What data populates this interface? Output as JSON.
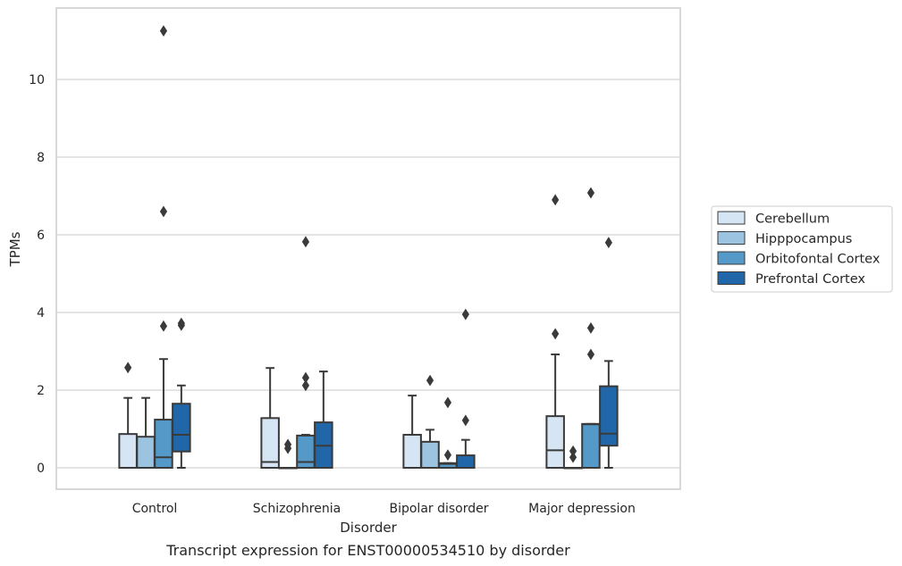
{
  "chart_data": {
    "type": "box",
    "caption": "Transcript expression for ENST00000534510 by disorder",
    "xlabel": "Disorder",
    "ylabel": "TPMs",
    "ylim": [
      -0.55,
      11.8
    ],
    "yticks": [
      0,
      2,
      4,
      6,
      8,
      10
    ],
    "grid": true,
    "legend_position": "right",
    "categories": [
      "Control",
      "Schizophrenia",
      "Bipolar disorder",
      "Major depression"
    ],
    "series": [
      {
        "name": "Cerebellum",
        "color": "#d6e5f4",
        "boxes": [
          {
            "min": 0,
            "q1": 0,
            "median": 0,
            "q3": 0.87,
            "max": 1.8,
            "outliers": [
              2.58
            ]
          },
          {
            "min": 0,
            "q1": 0,
            "median": 0.15,
            "q3": 1.28,
            "max": 2.57,
            "outliers": []
          },
          {
            "min": 0,
            "q1": 0,
            "median": 0,
            "q3": 0.85,
            "max": 1.86,
            "outliers": []
          },
          {
            "min": 0,
            "q1": 0,
            "median": 0.45,
            "q3": 1.33,
            "max": 2.92,
            "outliers": [
              3.45,
              6.9
            ]
          }
        ]
      },
      {
        "name": "Hipppocampus",
        "color": "#9cc4e0",
        "boxes": [
          {
            "min": 0,
            "q1": 0,
            "median": 0,
            "q3": 0.8,
            "max": 1.8,
            "outliers": []
          },
          {
            "min": 0,
            "q1": 0,
            "median": 0,
            "q3": 0,
            "max": 0,
            "outliers": [
              0.5,
              0.6
            ]
          },
          {
            "min": 0,
            "q1": 0,
            "median": 0,
            "q3": 0.67,
            "max": 0.98,
            "outliers": [
              2.25
            ]
          },
          {
            "min": 0,
            "q1": 0,
            "median": 0,
            "q3": 0,
            "max": 0,
            "outliers": [
              0.27,
              0.43
            ]
          }
        ]
      },
      {
        "name": "Orbitofontal Cortex",
        "color": "#5499c7",
        "boxes": [
          {
            "min": 0,
            "q1": 0,
            "median": 0.27,
            "q3": 1.24,
            "max": 2.8,
            "outliers": [
              3.65,
              6.6,
              11.25
            ]
          },
          {
            "min": 0,
            "q1": 0,
            "median": 0.15,
            "q3": 0.83,
            "max": 0.85,
            "outliers": [
              2.12,
              2.32,
              5.82
            ]
          },
          {
            "min": 0,
            "q1": 0,
            "median": 0.1,
            "q3": 0.12,
            "max": 0.12,
            "outliers": [
              0.33,
              1.68
            ]
          },
          {
            "min": 0,
            "q1": 0,
            "median": 1.12,
            "q3": 1.13,
            "max": 1.13,
            "outliers": [
              2.92,
              3.6,
              7.08
            ]
          }
        ]
      },
      {
        "name": "Prefrontal Cortex",
        "color": "#2166a8",
        "boxes": [
          {
            "min": 0,
            "q1": 0.42,
            "median": 0.85,
            "q3": 1.65,
            "max": 2.12,
            "outliers": [
              3.67,
              3.72
            ]
          },
          {
            "min": 0,
            "q1": 0,
            "median": 0.57,
            "q3": 1.17,
            "max": 2.48,
            "outliers": []
          },
          {
            "min": 0,
            "q1": 0,
            "median": 0,
            "q3": 0.32,
            "max": 0.72,
            "outliers": [
              1.22,
              3.95
            ]
          },
          {
            "min": 0,
            "q1": 0.57,
            "median": 0.88,
            "q3": 2.1,
            "max": 2.75,
            "outliers": [
              5.8
            ]
          }
        ]
      }
    ]
  }
}
